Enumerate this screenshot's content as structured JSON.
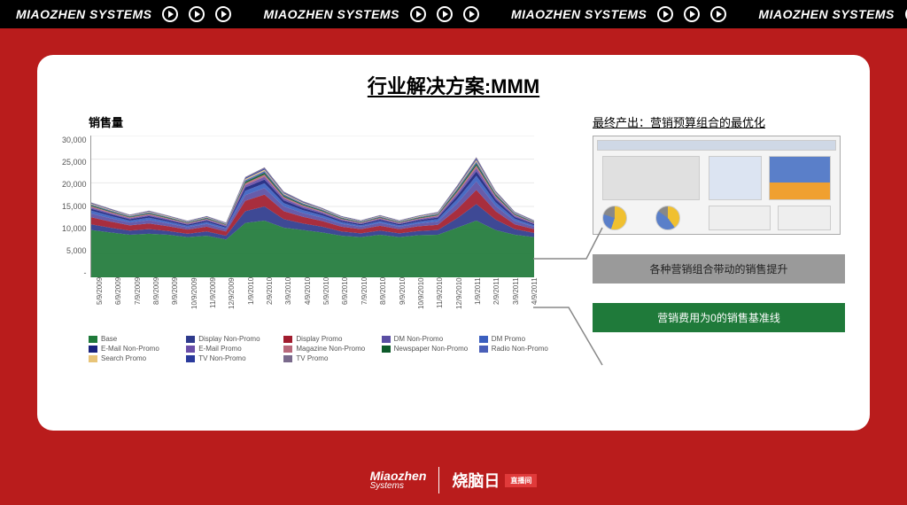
{
  "topbar": {
    "brand": "MIAOZHEN SYSTEMS",
    "repeat": 4
  },
  "title": "行业解决方案:MMM",
  "ylabel": "销售量",
  "right_title": "最终产出：营销预算组合的最优化",
  "callout_grey": "各种营销组合带动的销售提升",
  "callout_green": "营销费用为0的销售基准线",
  "footer": {
    "logo_en": "Miaozhen",
    "logo_sub": "Systems",
    "cn": "烧脑日",
    "tag": "直播间"
  },
  "chart": {
    "type": "stacked-area",
    "ylim": [
      0,
      30000
    ],
    "yticks": [
      0,
      5000,
      10000,
      15000,
      20000,
      25000,
      30000
    ],
    "ytick_labels": [
      "-",
      "5,000",
      "10,000",
      "15,000",
      "20,000",
      "25,000",
      "30,000"
    ],
    "xticks": [
      "5/9/2009",
      "6/9/2009",
      "7/9/2009",
      "8/9/2009",
      "9/9/2009",
      "10/9/2009",
      "11/9/2009",
      "12/9/2009",
      "1/9/2010",
      "2/9/2010",
      "3/9/2010",
      "4/9/2010",
      "5/9/2010",
      "6/9/2010",
      "7/9/2010",
      "8/9/2010",
      "9/9/2010",
      "10/9/2010",
      "11/9/2010",
      "12/9/2010",
      "1/9/2011",
      "2/9/2011",
      "3/9/2011",
      "4/9/2011"
    ],
    "grid_color": "#e8e8e8",
    "series": [
      {
        "name": "Base",
        "color": "#1f7a3a",
        "values": [
          10000,
          9500,
          9000,
          9200,
          9000,
          8500,
          8800,
          8000,
          11500,
          12000,
          10500,
          10000,
          9500,
          8800,
          8500,
          9000,
          8500,
          8900,
          9000,
          10500,
          12000,
          10000,
          9000,
          8500
        ]
      },
      {
        "name": "Display Non-Promo",
        "color": "#2e3a8c",
        "values": [
          1200,
          1000,
          900,
          1000,
          800,
          700,
          900,
          800,
          2500,
          3000,
          1800,
          1400,
          1200,
          900,
          800,
          900,
          800,
          900,
          1000,
          2000,
          3500,
          2200,
          1200,
          900
        ]
      },
      {
        "name": "Display Promo",
        "color": "#a11c2e",
        "values": [
          1500,
          1300,
          1100,
          1200,
          1000,
          900,
          1000,
          900,
          2200,
          2500,
          1700,
          1400,
          1200,
          1000,
          900,
          1000,
          900,
          1000,
          1100,
          1900,
          3000,
          1800,
          1000,
          800
        ]
      },
      {
        "name": "DM Non-Promo",
        "color": "#5a4ea3",
        "values": [
          800,
          700,
          600,
          700,
          600,
          500,
          600,
          500,
          1200,
          1400,
          1000,
          800,
          700,
          600,
          500,
          600,
          500,
          600,
          700,
          1200,
          1800,
          1100,
          700,
          500
        ]
      },
      {
        "name": "DM Promo",
        "color": "#3b5fbf",
        "values": [
          600,
          500,
          400,
          500,
          400,
          300,
          400,
          300,
          900,
          1000,
          700,
          600,
          500,
          400,
          300,
          400,
          300,
          400,
          500,
          900,
          1200,
          800,
          500,
          300
        ]
      },
      {
        "name": "E-Mail Non-Promo",
        "color": "#1a237e",
        "values": [
          400,
          350,
          300,
          350,
          300,
          250,
          300,
          250,
          700,
          800,
          600,
          450,
          380,
          300,
          250,
          300,
          250,
          300,
          350,
          700,
          900,
          600,
          350,
          250
        ]
      },
      {
        "name": "E-Mail Promo",
        "color": "#6a4ea8",
        "values": [
          300,
          250,
          200,
          250,
          200,
          180,
          200,
          180,
          500,
          600,
          400,
          320,
          270,
          200,
          180,
          200,
          180,
          200,
          250,
          500,
          700,
          400,
          250,
          180
        ]
      },
      {
        "name": "Magazine Non-Promo",
        "color": "#b8687a",
        "values": [
          250,
          220,
          180,
          220,
          180,
          150,
          180,
          150,
          400,
          450,
          320,
          260,
          220,
          180,
          150,
          180,
          150,
          180,
          220,
          400,
          550,
          320,
          200,
          150
        ]
      },
      {
        "name": "Newspaper Non-Promo",
        "color": "#0d5a2a",
        "values": [
          200,
          180,
          150,
          180,
          150,
          120,
          150,
          120,
          350,
          400,
          280,
          220,
          180,
          150,
          120,
          150,
          120,
          150,
          180,
          350,
          450,
          280,
          170,
          120
        ]
      },
      {
        "name": "Radio Non-Promo",
        "color": "#4a5fb8",
        "values": [
          180,
          160,
          130,
          160,
          130,
          110,
          130,
          110,
          300,
          340,
          250,
          200,
          160,
          130,
          110,
          130,
          110,
          130,
          160,
          300,
          400,
          250,
          150,
          110
        ]
      },
      {
        "name": "Search Promo",
        "color": "#e8c478",
        "values": [
          160,
          140,
          120,
          140,
          120,
          100,
          120,
          100,
          260,
          300,
          220,
          180,
          140,
          120,
          100,
          120,
          100,
          120,
          140,
          260,
          350,
          220,
          130,
          100
        ]
      },
      {
        "name": "TV Non-Promo",
        "color": "#2a3a9c",
        "values": [
          140,
          120,
          100,
          120,
          100,
          90,
          100,
          90,
          230,
          260,
          190,
          160,
          120,
          100,
          90,
          100,
          90,
          100,
          120,
          230,
          300,
          190,
          120,
          90
        ]
      },
      {
        "name": "TV Promo",
        "color": "#7a6a8c",
        "values": [
          120,
          100,
          90,
          100,
          90,
          80,
          90,
          80,
          200,
          230,
          170,
          140,
          110,
          90,
          80,
          90,
          80,
          90,
          100,
          200,
          270,
          170,
          100,
          80
        ]
      }
    ]
  }
}
